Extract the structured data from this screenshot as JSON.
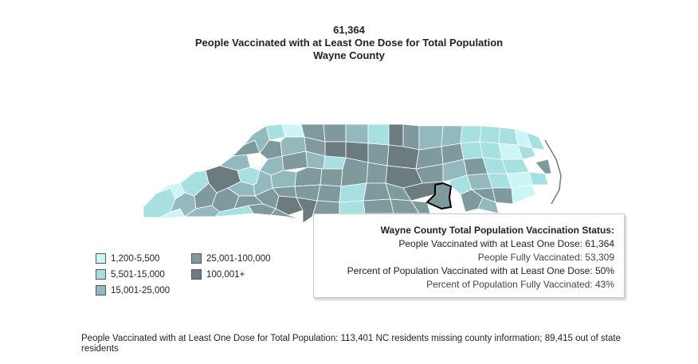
{
  "header": {
    "count": "61,364",
    "title": "People Vaccinated with at Least One Dose for Total Population",
    "county": "Wayne County"
  },
  "legend": {
    "items": [
      {
        "label": "1,200-5,500",
        "color": "#ccf5f5"
      },
      {
        "label": "5,501-15,000",
        "color": "#a7e0e0"
      },
      {
        "label": "15,001-25,000",
        "color": "#92b9bd"
      },
      {
        "label": "25,001-100,000",
        "color": "#7e9a9c"
      },
      {
        "label": "100,001+",
        "color": "#6c7c7e"
      }
    ]
  },
  "tooltip": {
    "title": "Wayne County Total Population Vaccination Status:",
    "rows": [
      "People Vaccinated with at Least One Dose: 61,364",
      "People Fully Vaccinated: 53,309",
      "Percent of Population Vaccinated with at Least One Dose: 50%",
      "Percent of Population Fully Vaccinated: 43%"
    ]
  },
  "footnote": "People Vaccinated with at Least One Dose for Total Population:  113,401 NC residents missing county information; 89,415 out of state residents"
}
